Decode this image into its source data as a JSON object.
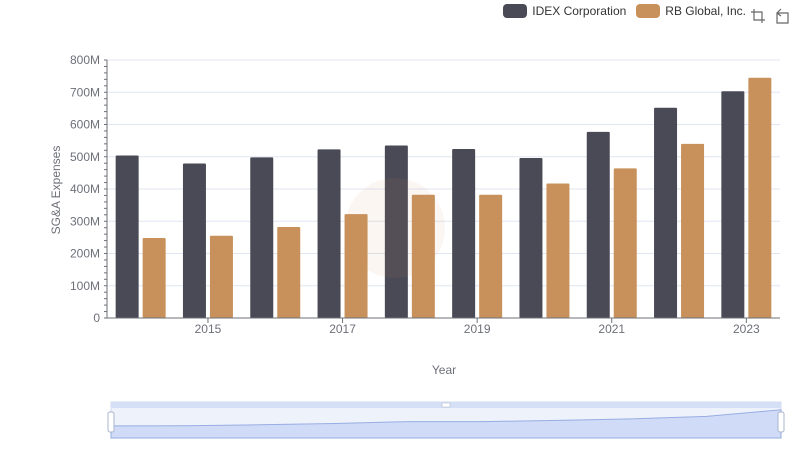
{
  "legend": {
    "items": [
      {
        "label": "IDEX Corporation",
        "color": "#4a4a56"
      },
      {
        "label": "RB Global, Inc.",
        "color": "#c8915b"
      }
    ]
  },
  "toolbox": {
    "icons": [
      "zoom-icon",
      "restore-icon"
    ]
  },
  "chart_data": {
    "type": "bar",
    "categories": [
      "2014",
      "2015",
      "2016",
      "2017",
      "2018",
      "2019",
      "2020",
      "2021",
      "2022",
      "2023"
    ],
    "x_tick_labels": [
      "2015",
      "2017",
      "2019",
      "2021",
      "2023"
    ],
    "series": [
      {
        "name": "IDEX Corporation",
        "color": "#4a4a56",
        "values": [
          504,
          479,
          498,
          523,
          535,
          524,
          496,
          577,
          652,
          703
        ]
      },
      {
        "name": "RB Global, Inc.",
        "color": "#c8915b",
        "values": [
          248,
          255,
          282,
          322,
          382,
          382,
          417,
          464,
          540,
          745
        ]
      }
    ],
    "xlabel": "Year",
    "ylabel": "SG&A Expenses",
    "y_tick_labels": [
      "0",
      "100M",
      "200M",
      "300M",
      "400M",
      "500M",
      "600M",
      "700M",
      "800M"
    ],
    "ylim": [
      0,
      800
    ],
    "grid": true,
    "legend_position": "top-right",
    "datazoom": true
  }
}
